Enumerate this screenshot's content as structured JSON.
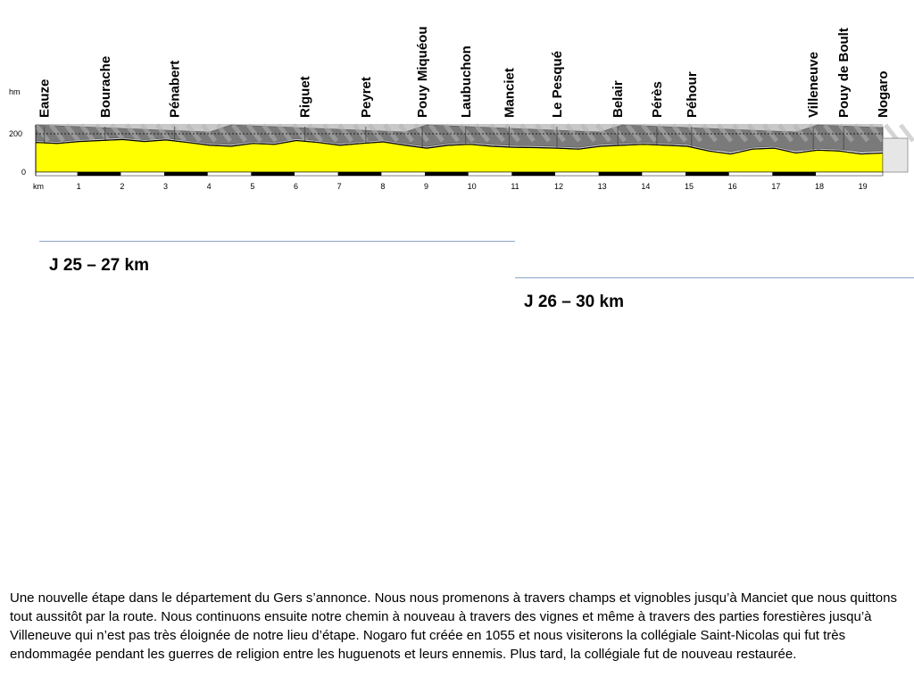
{
  "chart_data": {
    "type": "area",
    "title": "",
    "xlabel": "km",
    "ylabel": "hm",
    "xlim": [
      0,
      19.5
    ],
    "ylim": [
      0,
      200
    ],
    "y_ticks": [
      "0",
      "200"
    ],
    "x_ticks": [
      "km",
      "1",
      "2",
      "3",
      "4",
      "5",
      "6",
      "7",
      "8",
      "9",
      "10",
      "11",
      "12",
      "13",
      "14",
      "15",
      "16",
      "17",
      "18",
      "19"
    ],
    "places": [
      {
        "name": "Eauze",
        "km": 0.2
      },
      {
        "name": "Bourache",
        "km": 1.6
      },
      {
        "name": "Pénabert",
        "km": 3.2
      },
      {
        "name": "Riguet",
        "km": 6.2
      },
      {
        "name": "Peyret",
        "km": 7.6
      },
      {
        "name": "Pouy Miquéou",
        "km": 8.9
      },
      {
        "name": "Laubuchon",
        "km": 9.9
      },
      {
        "name": "Manciet",
        "km": 10.9
      },
      {
        "name": "Le Pesqué",
        "km": 12.0
      },
      {
        "name": "Belair",
        "km": 13.4
      },
      {
        "name": "Pérès",
        "km": 14.3
      },
      {
        "name": "Péhour",
        "km": 15.1
      },
      {
        "name": "Villeneuve",
        "km": 17.9
      },
      {
        "name": "Pouy de Boult",
        "km": 18.6
      },
      {
        "name": "Nogaro",
        "km": 19.5
      }
    ],
    "elevation": {
      "km": [
        0,
        0.5,
        1.0,
        1.5,
        2.0,
        2.5,
        3.0,
        3.5,
        4.0,
        4.5,
        5.0,
        5.5,
        6.0,
        6.5,
        7.0,
        7.5,
        8.0,
        8.5,
        9.0,
        9.5,
        10.0,
        10.5,
        11.0,
        11.5,
        12.0,
        12.5,
        13.0,
        13.5,
        14.0,
        14.5,
        15.0,
        15.5,
        16.0,
        16.5,
        17.0,
        17.5,
        18.0,
        18.5,
        19.0,
        19.5
      ],
      "hm": [
        155,
        150,
        160,
        165,
        170,
        160,
        168,
        155,
        140,
        135,
        150,
        145,
        165,
        155,
        140,
        150,
        158,
        140,
        125,
        140,
        145,
        135,
        130,
        128,
        125,
        120,
        135,
        140,
        145,
        140,
        135,
        110,
        95,
        120,
        125,
        100,
        115,
        110,
        95,
        100
      ]
    },
    "colors": {
      "fill": "#ffff00",
      "outline": "#000000",
      "relief_light": "#c8c8c8",
      "relief_dark": "#7a7a7a",
      "road": "#000000"
    },
    "grid": false,
    "legend": "none"
  },
  "stages": [
    {
      "label": "J 25 – 27 km"
    },
    {
      "label": "J 26 – 30 km"
    }
  ],
  "description": "Une nouvelle étape dans le département du Gers s’annonce. Nous nous promenons à travers champs et vignobles jusqu’à Manciet que nous quittons tout aussitôt par la route. Nous continuons ensuite notre chemin à nouveau à travers des vignes et même à travers des parties forestières jusqu’à Villeneuve qui n’est pas très éloignée de notre lieu d’étape. Nogaro fut créée en 1055 et nous visiterons la collégiale Saint-Nicolas qui fut très endommagée pendant les guerres de religion entre les huguenots et leurs ennemis. Plus tard, la collégiale fut de nouveau restaurée."
}
